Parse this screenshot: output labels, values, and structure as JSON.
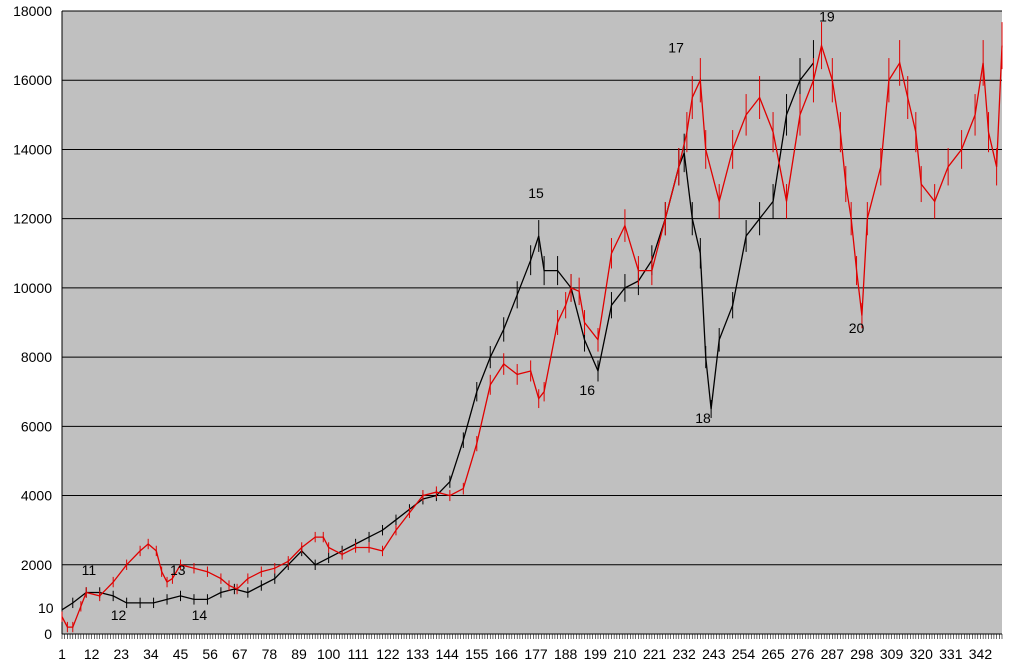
{
  "colors": {
    "plot_bg": "#c0c0c0",
    "grid": "#000000",
    "black_series": "#000000",
    "red_series": "#e00000",
    "page_bg": "#ffffff"
  },
  "chart_data": {
    "type": "line",
    "title": "",
    "xlabel": "",
    "ylabel": "",
    "grid": true,
    "xlim": [
      1,
      350
    ],
    "ylim": [
      0,
      18000
    ],
    "y_ticks": [
      0,
      2000,
      4000,
      6000,
      8000,
      10000,
      12000,
      14000,
      16000,
      18000
    ],
    "y_tick_labels": [
      "0",
      "2000",
      "4000",
      "6000",
      "8000",
      "10000",
      "12000",
      "14000",
      "16000",
      "18000"
    ],
    "x_tick_labels": [
      {
        "x": 1,
        "label": "1"
      },
      {
        "x": 12,
        "label": "12"
      },
      {
        "x": 23,
        "label": "23"
      },
      {
        "x": 34,
        "label": "34"
      },
      {
        "x": 45,
        "label": "45"
      },
      {
        "x": 56,
        "label": "56"
      },
      {
        "x": 67,
        "label": "67"
      },
      {
        "x": 78,
        "label": "78"
      },
      {
        "x": 89,
        "label": "89"
      },
      {
        "x": 100,
        "label": "100"
      },
      {
        "x": 111,
        "label": "111"
      },
      {
        "x": 122,
        "label": "122"
      },
      {
        "x": 133,
        "label": "133"
      },
      {
        "x": 144,
        "label": "144"
      },
      {
        "x": 155,
        "label": "155"
      },
      {
        "x": 166,
        "label": "166"
      },
      {
        "x": 177,
        "label": "177"
      },
      {
        "x": 188,
        "label": "188"
      },
      {
        "x": 199,
        "label": "199"
      },
      {
        "x": 210,
        "label": "210"
      },
      {
        "x": 221,
        "label": "221"
      },
      {
        "x": 232,
        "label": "232"
      },
      {
        "x": 243,
        "label": "243"
      },
      {
        "x": 254,
        "label": "254"
      },
      {
        "x": 265,
        "label": "265"
      },
      {
        "x": 276,
        "label": "276"
      },
      {
        "x": 287,
        "label": "287"
      },
      {
        "x": 298,
        "label": "298"
      },
      {
        "x": 309,
        "label": "309"
      },
      {
        "x": 320,
        "label": "320"
      },
      {
        "x": 331,
        "label": "331"
      },
      {
        "x": 342,
        "label": "342"
      }
    ],
    "series": [
      {
        "color": "#000000",
        "x": [
          1,
          5,
          10,
          15,
          20,
          25,
          30,
          35,
          40,
          45,
          50,
          55,
          60,
          65,
          70,
          75,
          80,
          85,
          90,
          95,
          100,
          105,
          110,
          115,
          120,
          125,
          130,
          135,
          140,
          145,
          150,
          155,
          160,
          165,
          170,
          175,
          178,
          180,
          185,
          190,
          195,
          200,
          205,
          210,
          215,
          220,
          225,
          230,
          232,
          235,
          238,
          240,
          242,
          245,
          250,
          255,
          260,
          265,
          270,
          275,
          280
        ],
        "values": [
          700,
          900,
          1200,
          1200,
          1100,
          900,
          900,
          900,
          1000,
          1100,
          1000,
          1000,
          1200,
          1300,
          1200,
          1400,
          1600,
          2000,
          2400,
          2000,
          2200,
          2400,
          2600,
          2800,
          3000,
          3300,
          3600,
          3900,
          4000,
          4400,
          5600,
          7000,
          8000,
          8800,
          9800,
          10800,
          11500,
          10500,
          10500,
          10000,
          8500,
          7600,
          9500,
          10000,
          10200,
          10800,
          12000,
          13500,
          13900,
          12000,
          11000,
          8000,
          6500,
          8500,
          9500,
          11500,
          12000,
          12500,
          15000,
          16000,
          16500
        ]
      },
      {
        "color": "#e00000",
        "x": [
          1,
          3,
          5,
          8,
          10,
          15,
          20,
          25,
          30,
          33,
          36,
          38,
          40,
          42,
          45,
          50,
          55,
          60,
          63,
          66,
          70,
          75,
          80,
          85,
          90,
          95,
          98,
          100,
          105,
          110,
          115,
          120,
          125,
          130,
          135,
          140,
          145,
          150,
          155,
          160,
          165,
          170,
          175,
          178,
          180,
          185,
          188,
          190,
          193,
          195,
          200,
          205,
          210,
          215,
          220,
          225,
          230,
          233,
          235,
          238,
          240,
          245,
          250,
          255,
          260,
          265,
          270,
          275,
          280,
          283,
          287,
          290,
          292,
          294,
          296,
          298,
          300,
          305,
          308,
          312,
          315,
          318,
          320,
          325,
          330,
          335,
          340,
          343,
          345,
          348,
          350
        ],
        "values": [
          500,
          200,
          200,
          800,
          1200,
          1100,
          1500,
          2000,
          2400,
          2600,
          2400,
          1800,
          1500,
          1600,
          2000,
          1900,
          1800,
          1600,
          1400,
          1300,
          1600,
          1800,
          1900,
          2100,
          2500,
          2800,
          2800,
          2500,
          2300,
          2500,
          2500,
          2400,
          3000,
          3500,
          4000,
          4100,
          4000,
          4200,
          5500,
          7200,
          7800,
          7500,
          7600,
          6800,
          7000,
          9000,
          9500,
          10000,
          9900,
          9000,
          8500,
          11000,
          11800,
          10500,
          10500,
          12000,
          13500,
          14500,
          15500,
          16000,
          14000,
          12500,
          14000,
          15000,
          15500,
          14500,
          12500,
          15000,
          16000,
          17000,
          16000,
          14500,
          13000,
          12000,
          10500,
          9200,
          12000,
          13500,
          16000,
          16500,
          15500,
          14500,
          13000,
          12500,
          13500,
          14000,
          15000,
          16500,
          14500,
          13500,
          17000
        ]
      }
    ],
    "annotations": [
      {
        "x": 1,
        "y": 600,
        "text": "10"
      },
      {
        "x": 11,
        "y": 1700,
        "text": "11"
      },
      {
        "x": 22,
        "y": 400,
        "text": "12"
      },
      {
        "x": 44,
        "y": 1700,
        "text": "13"
      },
      {
        "x": 52,
        "y": 400,
        "text": "14"
      },
      {
        "x": 177,
        "y": 12600,
        "text": "15"
      },
      {
        "x": 196,
        "y": 6900,
        "text": "16"
      },
      {
        "x": 229,
        "y": 16800,
        "text": "17"
      },
      {
        "x": 239,
        "y": 6100,
        "text": "18"
      },
      {
        "x": 285,
        "y": 17700,
        "text": "19"
      },
      {
        "x": 296,
        "y": 8700,
        "text": "20"
      }
    ]
  }
}
